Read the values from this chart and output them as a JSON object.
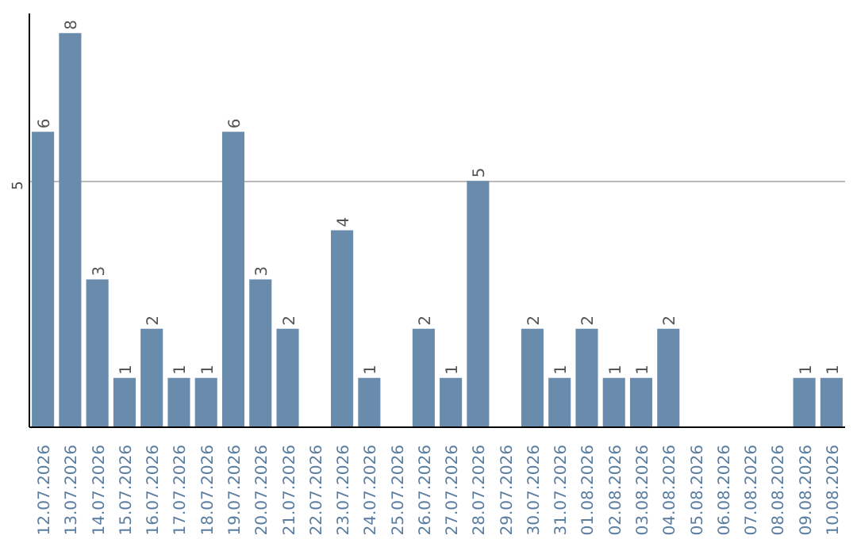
{
  "chart_data": {
    "type": "bar",
    "categories": [
      "12.07.2026",
      "13.07.2026",
      "14.07.2026",
      "15.07.2026",
      "16.07.2026",
      "17.07.2026",
      "18.07.2026",
      "19.07.2026",
      "20.07.2026",
      "21.07.2026",
      "22.07.2026",
      "23.07.2026",
      "24.07.2026",
      "25.07.2026",
      "26.07.2026",
      "27.07.2026",
      "28.07.2026",
      "29.07.2026",
      "30.07.2026",
      "31.07.2026",
      "01.08.2026",
      "02.08.2026",
      "03.08.2026",
      "04.08.2026",
      "05.08.2026",
      "06.08.2026",
      "07.08.2026",
      "08.08.2026",
      "09.08.2026",
      "10.08.2026"
    ],
    "values": [
      6,
      8,
      3,
      1,
      2,
      1,
      1,
      6,
      3,
      2,
      0,
      4,
      1,
      0,
      2,
      1,
      5,
      0,
      2,
      1,
      2,
      1,
      1,
      2,
      0,
      0,
      0,
      0,
      1,
      1
    ],
    "value_labels": [
      "6",
      "8",
      "3",
      "1",
      "2",
      "1",
      "1",
      "6",
      "3",
      "2",
      null,
      "4",
      "1",
      null,
      "2",
      "1",
      "5",
      null,
      "2",
      "1",
      "2",
      "1",
      "1",
      "2",
      null,
      null,
      null,
      null,
      "1",
      "1"
    ],
    "color": "#6a8cac",
    "ylim": [
      0,
      8.4
    ],
    "yticks": [
      5
    ],
    "grid": "y"
  }
}
